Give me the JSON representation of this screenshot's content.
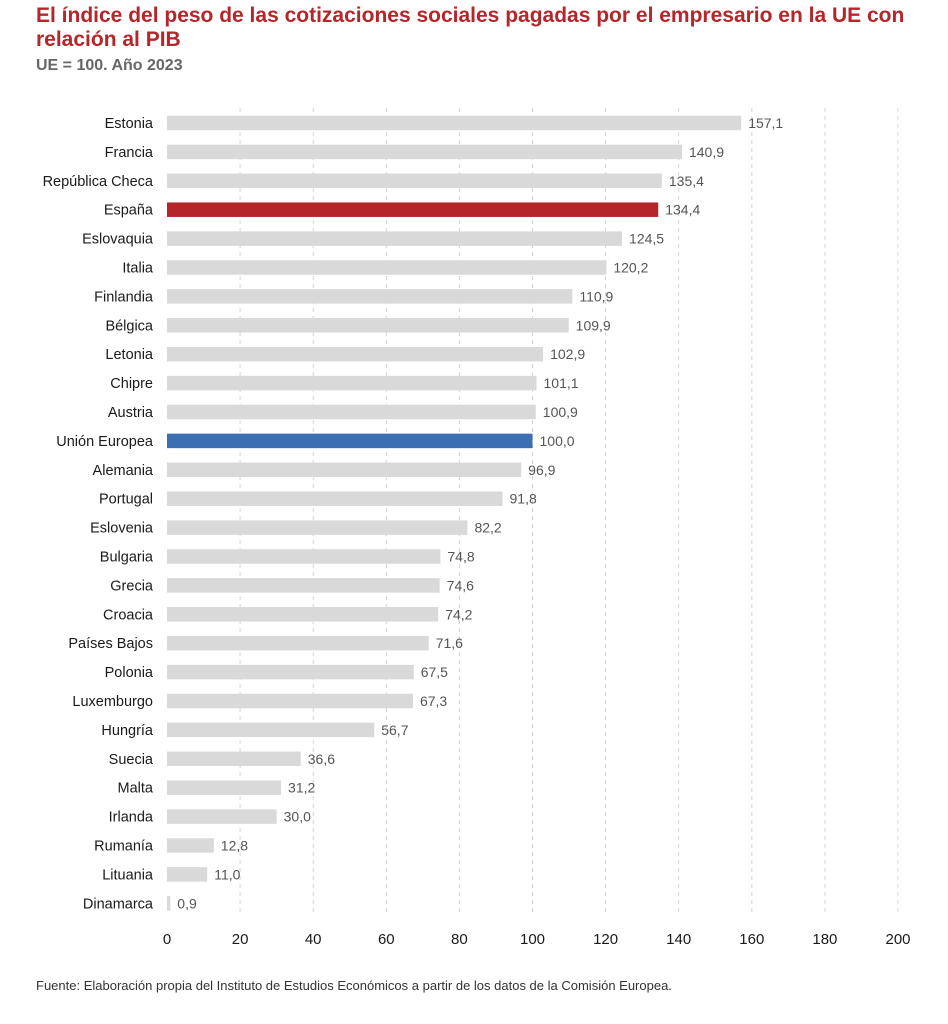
{
  "chart_data": {
    "type": "bar",
    "orientation": "horizontal",
    "title": "El índice del peso de las cotizaciones sociales pagadas por el empresario en la UE con relación al PIB",
    "subtitle": "UE = 100. Año 2023",
    "categories": [
      "Estonia",
      "Francia",
      "República Checa",
      "España",
      "Eslovaquia",
      "Italia",
      "Finlandia",
      "Bélgica",
      "Letonia",
      "Chipre",
      "Austria",
      "Unión Europea",
      "Alemania",
      "Portugal",
      "Eslovenia",
      "Bulgaria",
      "Grecia",
      "Croacia",
      "Países Bajos",
      "Polonia",
      "Luxemburgo",
      "Hungría",
      "Suecia",
      "Malta",
      "Irlanda",
      "Rumanía",
      "Lituania",
      "Dinamarca"
    ],
    "values": [
      157.1,
      140.9,
      135.4,
      134.4,
      124.5,
      120.2,
      110.9,
      109.9,
      102.9,
      101.1,
      100.9,
      100.0,
      96.9,
      91.8,
      82.2,
      74.8,
      74.6,
      74.2,
      71.6,
      67.5,
      67.3,
      56.7,
      36.6,
      31.2,
      30.0,
      12.8,
      11.0,
      0.9
    ],
    "value_labels": [
      "157,1",
      "140,9",
      "135,4",
      "134,4",
      "124,5",
      "120,2",
      "110,9",
      "109,9",
      "102,9",
      "101,1",
      "100,9",
      "100,0",
      "96,9",
      "91,8",
      "82,2",
      "74,8",
      "74,6",
      "74,2",
      "71,6",
      "67,5",
      "67,3",
      "56,7",
      "36,6",
      "31,2",
      "30,0",
      "12,8",
      "11,0",
      "0,9"
    ],
    "xlim": [
      0,
      200
    ],
    "xticks": [
      "0",
      "20",
      "40",
      "60",
      "80",
      "100",
      "120",
      "140",
      "160",
      "180",
      "200"
    ],
    "grid": "vertical dashed",
    "colors": {
      "default": "#d9d9d9",
      "highlight_spain": "#b5262b",
      "highlight_eu": "#3b6eb2",
      "grid": "#d4d4d4"
    },
    "highlights": {
      "España": "#b5262b",
      "Unión Europea": "#3b6eb2"
    }
  },
  "source": "Fuente: Elaboración propia del Instituto de Estudios Económicos a partir de los datos de la Comisión Europea."
}
